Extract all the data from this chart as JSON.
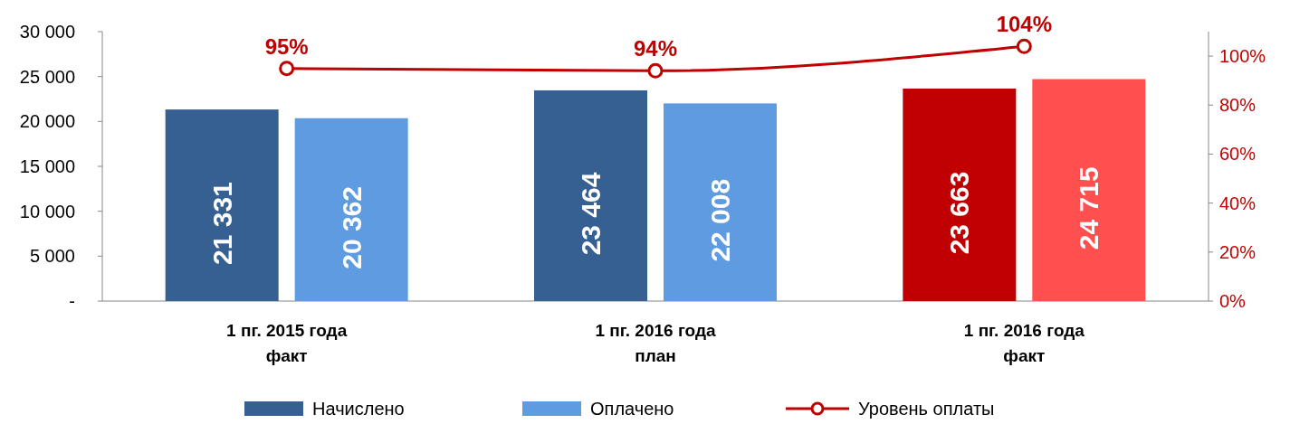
{
  "chart_data": {
    "type": "bar",
    "categories": [
      "1 пг. 2015 года факт",
      "1 пг. 2016 года план",
      "1 пг. 2016 года факт"
    ],
    "series": [
      {
        "name": "Начислено",
        "color": "#376092",
        "colors": [
          "#376092",
          "#376092",
          "#c00000"
        ],
        "values": [
          21331,
          23464,
          23663
        ],
        "value_labels": [
          "21 331",
          "23 464",
          "23 663"
        ]
      },
      {
        "name": "Оплачено",
        "color": "#5f9be0",
        "colors": [
          "#5f9be0",
          "#5f9be0",
          "#ff4f4f"
        ],
        "values": [
          20362,
          22008,
          24715
        ],
        "value_labels": [
          "20 362",
          "22 008",
          "24 715"
        ]
      },
      {
        "name": "Уровень оплаты",
        "type": "line",
        "axis": "y2",
        "color": "#c00000",
        "marker": "circle",
        "values": [
          95,
          94,
          104
        ],
        "value_labels": [
          "95%",
          "94%",
          "104%"
        ]
      }
    ],
    "ylim": [
      0,
      30000
    ],
    "yticks": [
      {
        "value": 0,
        "label": "-"
      },
      {
        "value": 5000,
        "label": "5 000"
      },
      {
        "value": 10000,
        "label": "10 000"
      },
      {
        "value": 15000,
        "label": "15 000"
      },
      {
        "value": 20000,
        "label": "20 000"
      },
      {
        "value": 25000,
        "label": "25 000"
      },
      {
        "value": 30000,
        "label": "30 000"
      }
    ],
    "y2lim": [
      0,
      110
    ],
    "y2ticks": [
      {
        "value": 0,
        "label": "0%"
      },
      {
        "value": 20,
        "label": "20%"
      },
      {
        "value": 40,
        "label": "40%"
      },
      {
        "value": 60,
        "label": "60%"
      },
      {
        "value": 80,
        "label": "80%"
      },
      {
        "value": 100,
        "label": "100%"
      }
    ],
    "grid": false,
    "legend": "bottom"
  }
}
